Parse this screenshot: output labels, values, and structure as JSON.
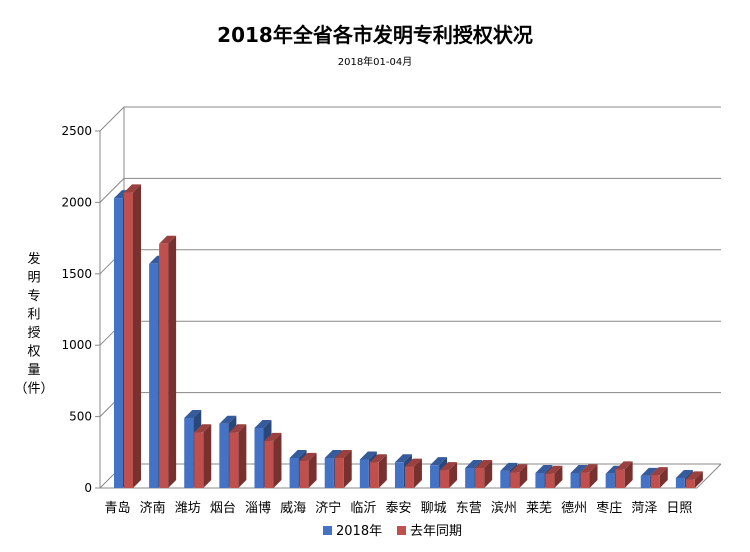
{
  "chart_data": {
    "type": "bar",
    "title": "2018年全省各市发明专利授权状况",
    "subtitle": "2018年01-04月",
    "ylabel": [
      "发",
      "明",
      "专",
      "利",
      "授",
      "权",
      "量",
      "（件）"
    ],
    "xlabel": "",
    "ylim": [
      0,
      2500
    ],
    "yticks": [
      0,
      500,
      1000,
      1500,
      2000,
      2500
    ],
    "grid": true,
    "legend_position": "bottom",
    "categories": [
      "青岛",
      "济南",
      "潍坊",
      "烟台",
      "淄博",
      "威海",
      "济宁",
      "临沂",
      "泰安",
      "聊城",
      "东营",
      "滨州",
      "莱芜",
      "德州",
      "枣庄",
      "菏泽",
      "日照"
    ],
    "series": [
      {
        "name": "2018年",
        "color": "#4472C4",
        "values": [
          2030,
          1570,
          490,
          450,
          420,
          210,
          210,
          200,
          180,
          160,
          140,
          120,
          105,
          105,
          100,
          85,
          70
        ]
      },
      {
        "name": "去年同期",
        "color": "#C0504D",
        "values": [
          2070,
          1710,
          390,
          390,
          330,
          190,
          210,
          180,
          150,
          125,
          140,
          110,
          100,
          110,
          130,
          90,
          60
        ]
      }
    ]
  }
}
